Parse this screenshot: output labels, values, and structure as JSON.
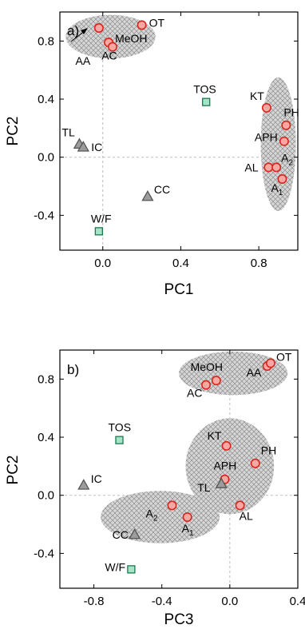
{
  "colors": {
    "circle_fill": "#f7a8a2",
    "circle_stroke": "#d8241d",
    "triangle_fill": "#9c9c9c",
    "triangle_stroke": "#555555",
    "square_fill": "#a6e3c9",
    "square_stroke": "#1b7a4d",
    "cluster_fill": "#cfcfcf",
    "zero_line": "#bbbbbb"
  },
  "chart_data": [
    {
      "type": "scatter",
      "panel_label": "a)",
      "xlabel": "PC1",
      "ylabel": "PC2",
      "xlim": [
        -0.22,
        1.0
      ],
      "ylim": [
        -0.64,
        1.0
      ],
      "xticks": [
        {
          "v": 0,
          "label": "0.0"
        },
        {
          "v": 0.4,
          "label": "0.4"
        },
        {
          "v": 0.8,
          "label": "0.8"
        }
      ],
      "yticks": [
        {
          "v": 0.8,
          "label": "0.8"
        },
        {
          "v": 0.4,
          "label": "0.4"
        },
        {
          "v": 0.0,
          "label": "0.0"
        },
        {
          "v": -0.4,
          "label": "-0.4"
        }
      ],
      "clusters": [
        {
          "cx": 0.04,
          "cy": 0.83,
          "rx": 0.23,
          "ry": 0.15
        },
        {
          "cx": 0.9,
          "cy": 0.09,
          "rx": 0.09,
          "ry": 0.46
        }
      ],
      "points": [
        {
          "label": "AA",
          "sub": "",
          "shape": "circle",
          "x": -0.02,
          "y": 0.89
        },
        {
          "label": "MeOH",
          "sub": "",
          "shape": "circle",
          "x": 0.03,
          "y": 0.79
        },
        {
          "label": "AC",
          "sub": "",
          "shape": "circle",
          "x": 0.05,
          "y": 0.76
        },
        {
          "label": "OT",
          "sub": "",
          "shape": "circle",
          "x": 0.2,
          "y": 0.91
        },
        {
          "label": "TOS",
          "sub": "",
          "shape": "square",
          "x": 0.53,
          "y": 0.38
        },
        {
          "label": "KT",
          "sub": "",
          "shape": "circle",
          "x": 0.84,
          "y": 0.34
        },
        {
          "label": "PH",
          "sub": "",
          "shape": "circle",
          "x": 0.94,
          "y": 0.22
        },
        {
          "label": "APH",
          "sub": "",
          "shape": "circle",
          "x": 0.93,
          "y": 0.11
        },
        {
          "label": "AL",
          "sub": "",
          "shape": "circle",
          "x": 0.85,
          "y": -0.07
        },
        {
          "label": "A",
          "sub": "2",
          "shape": "circle",
          "x": 0.89,
          "y": -0.07
        },
        {
          "label": "A",
          "sub": "1",
          "shape": "circle",
          "x": 0.92,
          "y": -0.15
        },
        {
          "label": "TL",
          "sub": "",
          "shape": "triangle",
          "x": -0.12,
          "y": 0.09
        },
        {
          "label": "IC",
          "sub": "",
          "shape": "triangle",
          "x": -0.1,
          "y": 0.07
        },
        {
          "label": "CC",
          "sub": "",
          "shape": "triangle",
          "x": 0.23,
          "y": -0.27
        },
        {
          "label": "W/F",
          "sub": "",
          "shape": "square",
          "x": -0.02,
          "y": -0.51
        }
      ]
    },
    {
      "type": "scatter",
      "panel_label": "b)",
      "xlabel": "PC3",
      "ylabel": "PC2",
      "xlim": [
        -1.0,
        0.4
      ],
      "ylim": [
        -0.64,
        1.0
      ],
      "xticks": [
        {
          "v": -0.8,
          "label": "-0.8"
        },
        {
          "v": -0.4,
          "label": "-0.4"
        },
        {
          "v": 0.0,
          "label": "0.0"
        },
        {
          "v": 0.4,
          "label": "0.4"
        }
      ],
      "yticks": [
        {
          "v": 0.8,
          "label": "0.8"
        },
        {
          "v": 0.4,
          "label": "0.4"
        },
        {
          "v": 0.0,
          "label": "0.0"
        },
        {
          "v": -0.4,
          "label": "-0.4"
        }
      ],
      "clusters": [
        {
          "cx": 0.02,
          "cy": 0.84,
          "rx": 0.32,
          "ry": 0.15
        },
        {
          "cx": 0.0,
          "cy": 0.2,
          "rx": 0.26,
          "ry": 0.33
        },
        {
          "cx": -0.41,
          "cy": -0.15,
          "rx": 0.35,
          "ry": 0.18
        }
      ],
      "points": [
        {
          "label": "AA",
          "sub": "",
          "shape": "circle",
          "x": 0.22,
          "y": 0.89
        },
        {
          "label": "OT",
          "sub": "",
          "shape": "circle",
          "x": 0.24,
          "y": 0.91
        },
        {
          "label": "MeOH",
          "sub": "",
          "shape": "circle",
          "x": -0.08,
          "y": 0.79
        },
        {
          "label": "AC",
          "sub": "",
          "shape": "circle",
          "x": -0.14,
          "y": 0.76
        },
        {
          "label": "TOS",
          "sub": "",
          "shape": "square",
          "x": -0.65,
          "y": 0.38
        },
        {
          "label": "KT",
          "sub": "",
          "shape": "circle",
          "x": -0.02,
          "y": 0.34
        },
        {
          "label": "PH",
          "sub": "",
          "shape": "circle",
          "x": 0.15,
          "y": 0.22
        },
        {
          "label": "APH",
          "sub": "",
          "shape": "circle",
          "x": -0.03,
          "y": 0.11
        },
        {
          "label": "TL",
          "sub": "",
          "shape": "triangle",
          "x": -0.05,
          "y": 0.08
        },
        {
          "label": "IC",
          "sub": "",
          "shape": "triangle",
          "x": -0.86,
          "y": 0.07
        },
        {
          "label": "AL",
          "sub": "",
          "shape": "circle",
          "x": 0.06,
          "y": -0.07
        },
        {
          "label": "A",
          "sub": "2",
          "shape": "circle",
          "x": -0.34,
          "y": -0.07
        },
        {
          "label": "A",
          "sub": "1",
          "shape": "circle",
          "x": -0.25,
          "y": -0.15
        },
        {
          "label": "CC",
          "sub": "",
          "shape": "triangle",
          "x": -0.56,
          "y": -0.27
        },
        {
          "label": "W/F",
          "sub": "",
          "shape": "square",
          "x": -0.58,
          "y": -0.51
        }
      ]
    }
  ]
}
